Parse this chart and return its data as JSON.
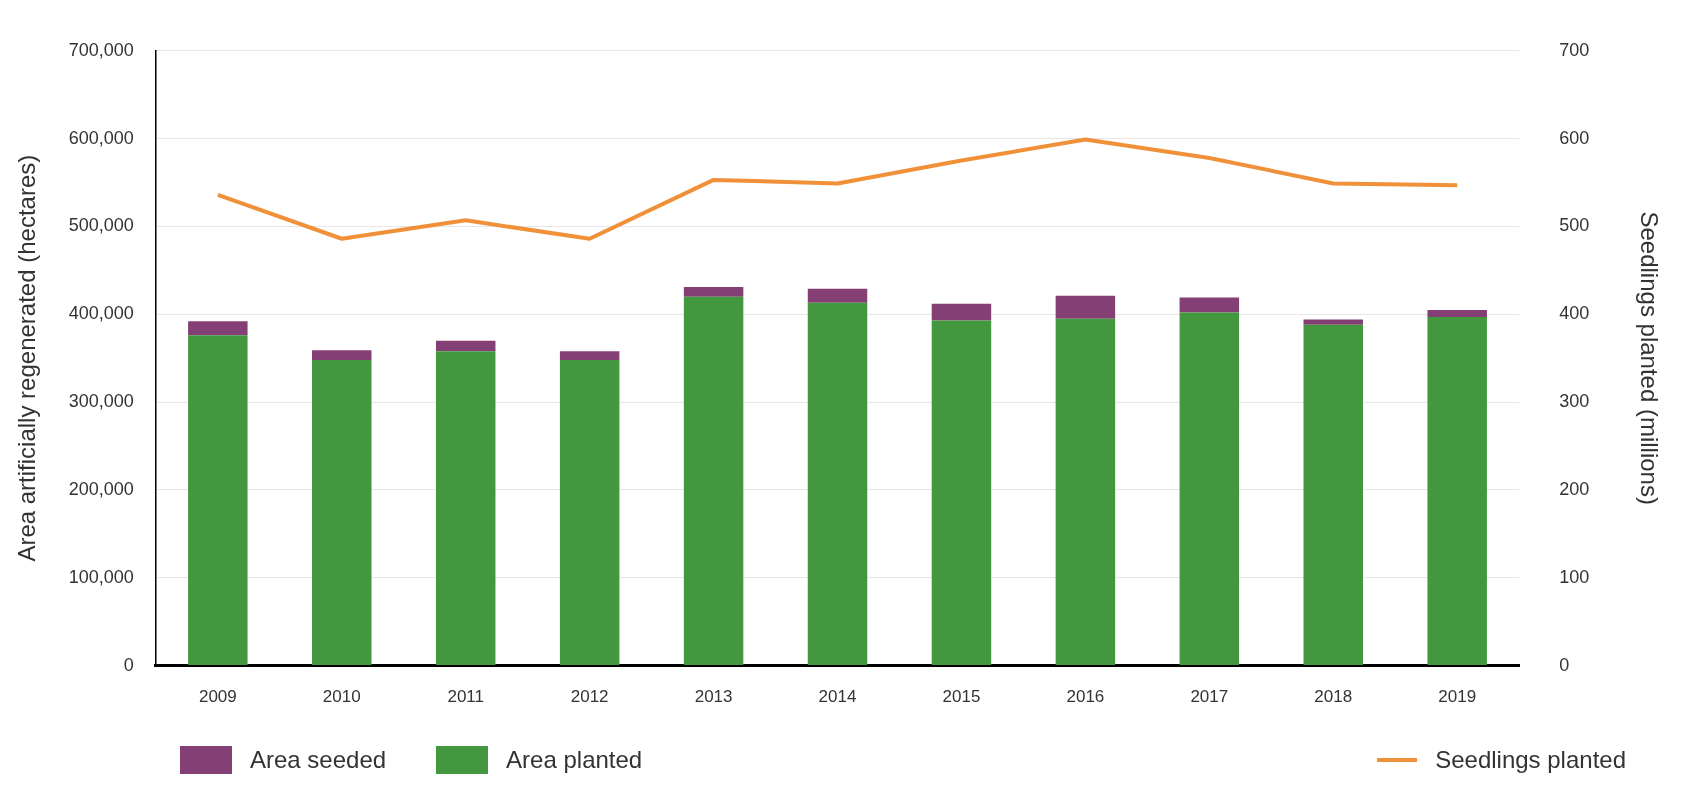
{
  "chart_data": {
    "type": "bar",
    "stacked": true,
    "categories": [
      "2009",
      "2010",
      "2011",
      "2012",
      "2013",
      "2014",
      "2015",
      "2016",
      "2017",
      "2018",
      "2019"
    ],
    "series": [
      {
        "name": "Area planted",
        "color": "#43983f",
        "values": [
          376000,
          348000,
          358000,
          348000,
          420000,
          413000,
          393000,
          395000,
          402000,
          388000,
          397000
        ]
      },
      {
        "name": "Area seeded",
        "color": "#843f74",
        "values": [
          16000,
          11000,
          12000,
          10000,
          11000,
          16000,
          19000,
          26000,
          17000,
          6000,
          8000
        ]
      },
      {
        "name": "Seedlings planted",
        "type": "line",
        "axis": "y2",
        "color": "#f0913a",
        "values": [
          536,
          486,
          507,
          486,
          553,
          549,
          575,
          599,
          578,
          549,
          547
        ]
      }
    ],
    "ylabel": "Area artificially regenerated (hectares)",
    "y2label": "Seedlings planted (millions)",
    "ylim": [
      0,
      700000
    ],
    "yticks": [
      {
        "value": 0,
        "label": "0"
      },
      {
        "value": 100000,
        "label": "100,000"
      },
      {
        "value": 200000,
        "label": "200,000"
      },
      {
        "value": 300000,
        "label": "300,000"
      },
      {
        "value": 400000,
        "label": "400,000"
      },
      {
        "value": 500000,
        "label": "500,000"
      },
      {
        "value": 600000,
        "label": "600,000"
      },
      {
        "value": 700000,
        "label": "700,000"
      }
    ],
    "y2lim": [
      0,
      700
    ],
    "y2ticks": [
      0,
      100,
      200,
      300,
      400,
      500,
      600,
      700
    ],
    "grid": "y",
    "legend": "bottom",
    "marker": "none"
  }
}
